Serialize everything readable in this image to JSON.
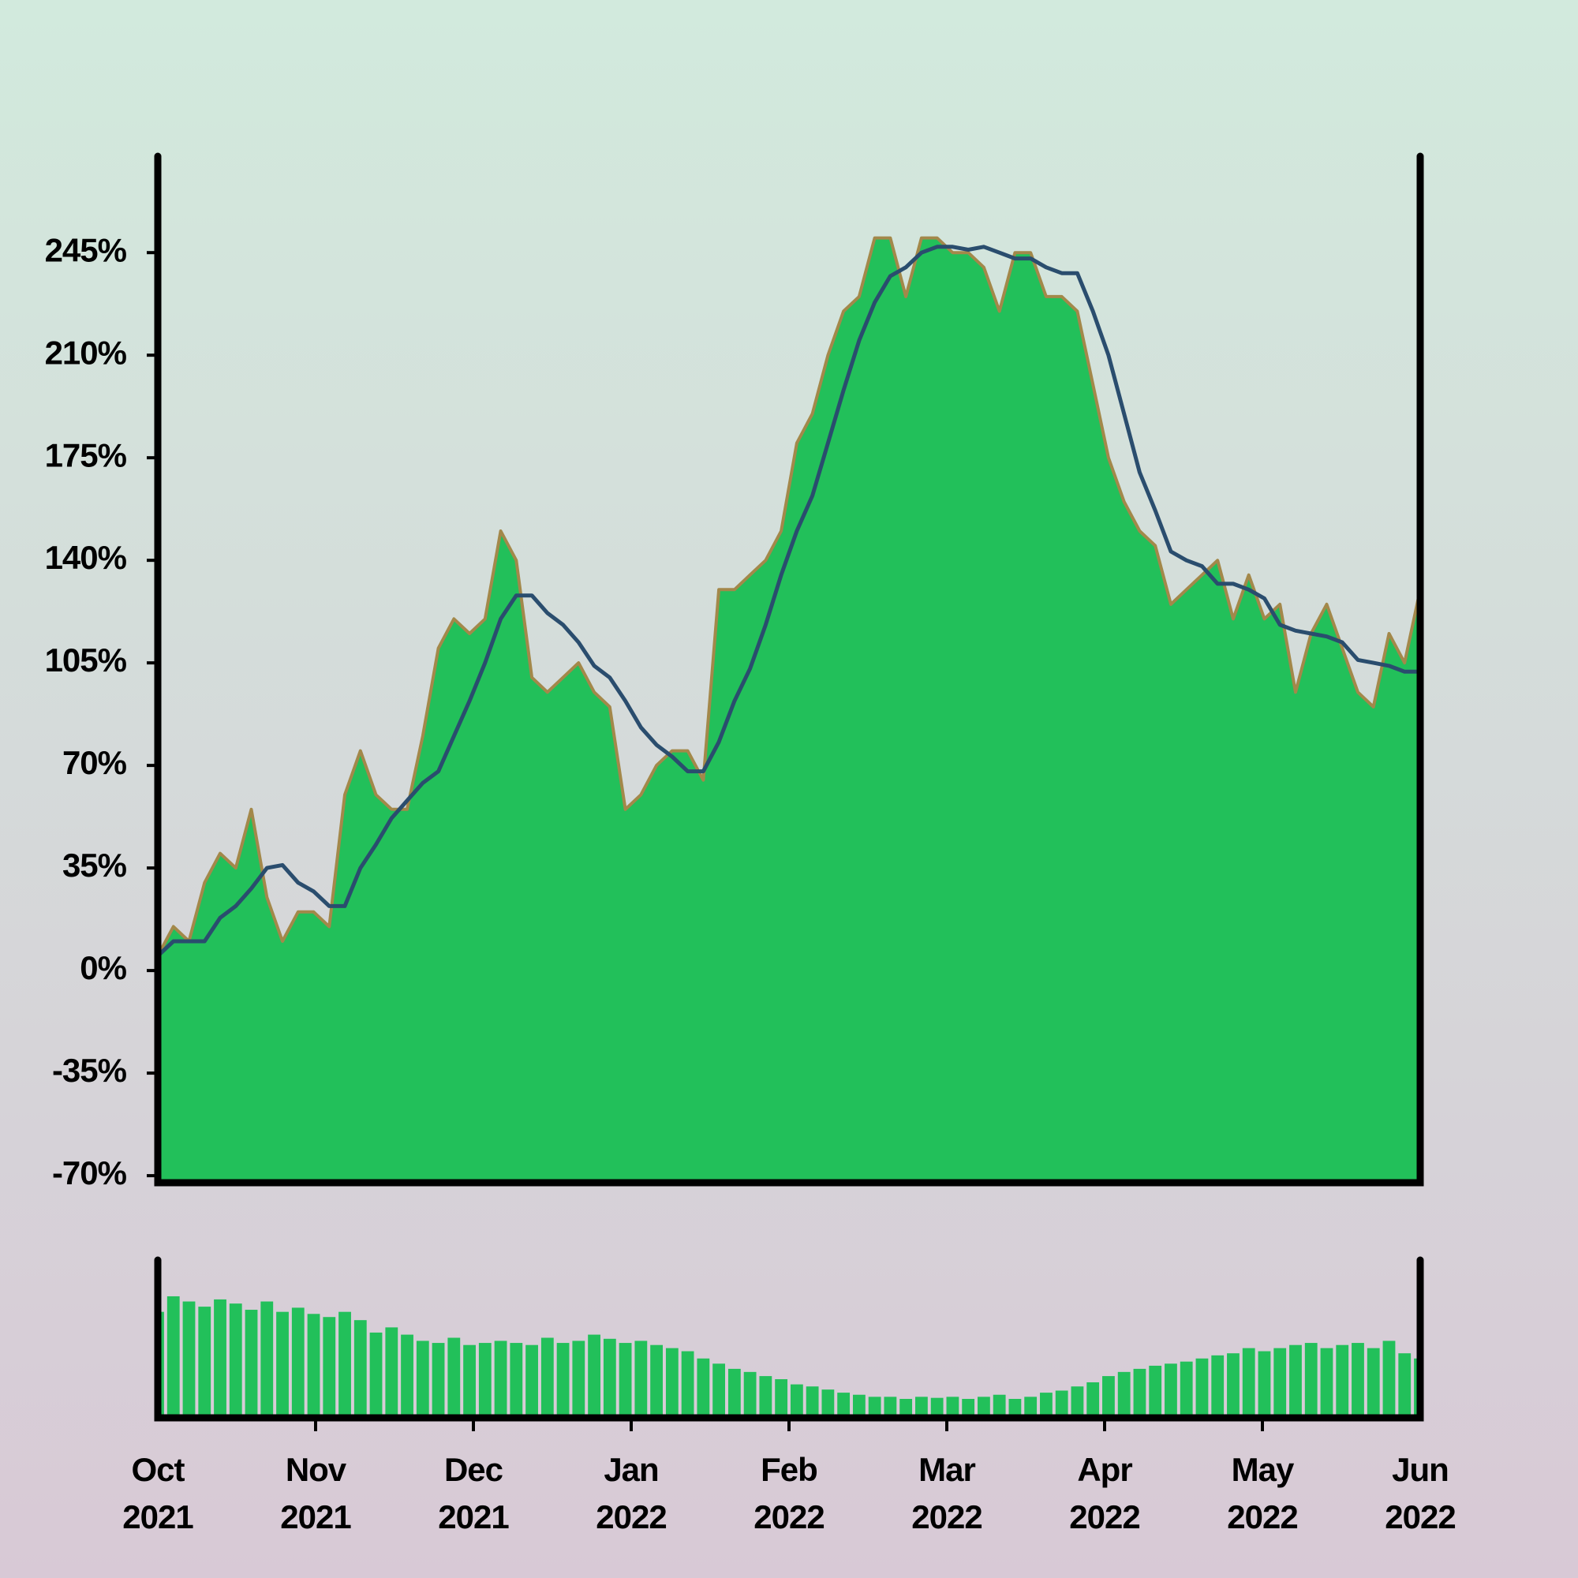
{
  "chart_data": [
    {
      "type": "area",
      "ylim": [
        -72.4,
        277.9
      ],
      "yticks": [
        {
          "value": -70,
          "label": "-70%"
        },
        {
          "value": -35,
          "label": "-35%"
        },
        {
          "value": 0,
          "label": "0%"
        },
        {
          "value": 35,
          "label": "35%"
        },
        {
          "value": 70,
          "label": "70%"
        },
        {
          "value": 105,
          "label": "105%"
        },
        {
          "value": 140,
          "label": "140%"
        },
        {
          "value": 175,
          "label": "175%"
        },
        {
          "value": 210,
          "label": "210%"
        },
        {
          "value": 245,
          "label": "245%"
        }
      ],
      "series": [
        {
          "color": "#22c05a",
          "line_color": "#a3884a",
          "values": [
            5,
            15,
            10,
            30,
            40,
            35,
            55,
            25,
            10,
            20,
            20,
            15,
            60,
            75,
            60,
            55,
            55,
            80,
            110,
            120,
            115,
            120,
            150,
            140,
            100,
            95,
            100,
            105,
            95,
            90,
            55,
            60,
            70,
            75,
            75,
            65,
            130,
            130,
            135,
            140,
            150,
            180,
            190,
            210,
            225,
            230,
            250,
            250,
            230,
            250,
            250,
            245,
            245,
            240,
            225,
            245,
            245,
            230,
            230,
            225,
            200,
            175,
            160,
            150,
            145,
            125,
            130,
            135,
            140,
            120,
            135,
            120,
            125,
            95,
            115,
            125,
            110,
            95,
            90,
            115,
            105,
            130
          ]
        },
        {
          "color": "#2a4d6e",
          "values": [
            5,
            10,
            10,
            10,
            18,
            22,
            28,
            35,
            36,
            30,
            27,
            22,
            22,
            35,
            43,
            52,
            58,
            64,
            68,
            80,
            92,
            105,
            120,
            128,
            128,
            122,
            118,
            112,
            104,
            100,
            92,
            83,
            77,
            73,
            68,
            68,
            78,
            92,
            103,
            118,
            135,
            150,
            162,
            180,
            198,
            215,
            228,
            237,
            240,
            245,
            247,
            247,
            246,
            247,
            245,
            243,
            243,
            240,
            238,
            238,
            225,
            210,
            190,
            170,
            157,
            143,
            140,
            138,
            132,
            132,
            130,
            127,
            118,
            116,
            115,
            114,
            112,
            106,
            105,
            104,
            102,
            102
          ]
        }
      ]
    },
    {
      "type": "bar",
      "color": "#22c05a",
      "ylim": [
        0,
        150
      ],
      "values": [
        100,
        115,
        110,
        105,
        112,
        108,
        102,
        110,
        100,
        104,
        98,
        95,
        100,
        92,
        80,
        85,
        78,
        72,
        70,
        75,
        68,
        70,
        72,
        70,
        68,
        75,
        70,
        72,
        78,
        74,
        70,
        72,
        68,
        65,
        62,
        55,
        50,
        45,
        42,
        38,
        35,
        30,
        28,
        25,
        22,
        20,
        18,
        18,
        16,
        18,
        17,
        18,
        16,
        18,
        20,
        16,
        18,
        22,
        24,
        28,
        32,
        38,
        42,
        45,
        48,
        50,
        52,
        55,
        58,
        60,
        65,
        62,
        65,
        68,
        70,
        65,
        68,
        70,
        65,
        72,
        60,
        55
      ],
      "xticks": [
        {
          "month": "Oct",
          "year": "2021"
        },
        {
          "month": "Nov",
          "year": "2021"
        },
        {
          "month": "Dec",
          "year": "2021"
        },
        {
          "month": "Jan",
          "year": "2022"
        },
        {
          "month": "Feb",
          "year": "2022"
        },
        {
          "month": "Mar",
          "year": "2022"
        },
        {
          "month": "Apr",
          "year": "2022"
        },
        {
          "month": "May",
          "year": "2022"
        },
        {
          "month": "Jun",
          "year": "2022"
        }
      ]
    }
  ]
}
